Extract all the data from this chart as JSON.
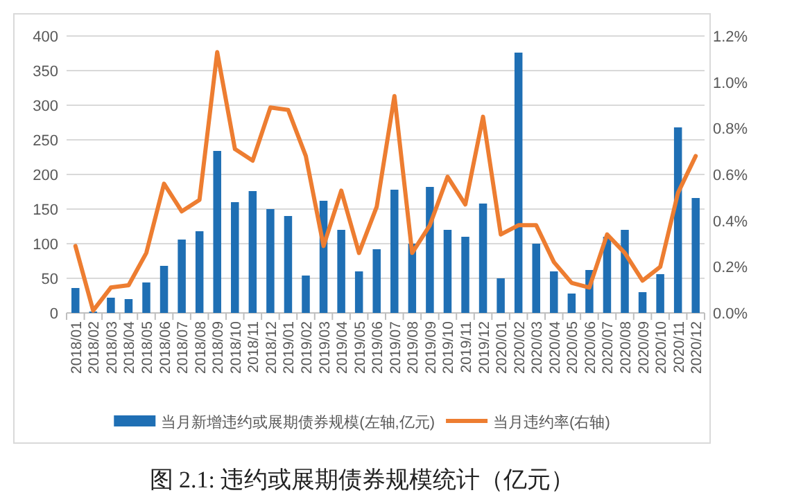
{
  "chart_data": {
    "type": "bar",
    "categories": [
      "2018/01",
      "2018/02",
      "2018/03",
      "2018/04",
      "2018/05",
      "2018/06",
      "2018/07",
      "2018/08",
      "2018/09",
      "2018/10",
      "2018/11",
      "2018/12",
      "2019/01",
      "2019/02",
      "2019/03",
      "2019/04",
      "2019/05",
      "2019/06",
      "2019/07",
      "2019/08",
      "2019/09",
      "2019/10",
      "2019/11",
      "2019/12",
      "2020/01",
      "2020/02",
      "2020/03",
      "2020/04",
      "2020/05",
      "2020/06",
      "2020/07",
      "2020/08",
      "2020/09",
      "2020/10",
      "2020/11",
      "2020/12"
    ],
    "series": [
      {
        "name": "当月新增违约或展期债券规模(左轴,亿元)",
        "color": "#1f6fb4",
        "values": [
          36,
          2,
          22,
          20,
          44,
          68,
          106,
          118,
          234,
          160,
          176,
          150,
          140,
          54,
          162,
          120,
          60,
          92,
          178,
          100,
          182,
          120,
          110,
          158,
          50,
          376,
          100,
          60,
          28,
          62,
          110,
          120,
          30,
          56,
          268,
          166
        ]
      },
      {
        "name": "当月违约率(右轴)",
        "type": "line",
        "axis": "y2",
        "color": "#ed7d31",
        "values": [
          0.29,
          0.01,
          0.11,
          0.12,
          0.26,
          0.56,
          0.44,
          0.49,
          1.13,
          0.71,
          0.66,
          0.89,
          0.88,
          0.68,
          0.29,
          0.53,
          0.26,
          0.46,
          0.94,
          0.26,
          0.38,
          0.59,
          0.47,
          0.85,
          0.34,
          0.38,
          0.38,
          0.22,
          0.13,
          0.11,
          0.34,
          0.26,
          0.14,
          0.2,
          0.52,
          0.68
        ]
      }
    ],
    "ylim": [
      0,
      400
    ],
    "yticks": [
      0,
      50,
      100,
      150,
      200,
      250,
      300,
      350,
      400
    ],
    "y2lim": [
      0,
      1.2
    ],
    "y2ticks": [
      {
        "value": 0,
        "label": "0.0%"
      },
      {
        "value": 0.2,
        "label": "0.2%"
      },
      {
        "value": 0.4,
        "label": "0.4%"
      },
      {
        "value": 0.6,
        "label": "0.6%"
      },
      {
        "value": 0.8,
        "label": "0.8%"
      },
      {
        "value": 1.0,
        "label": "1.0%"
      },
      {
        "value": 1.2,
        "label": "1.2%"
      }
    ],
    "grid": "y",
    "legend": "bottom",
    "annotations": [
      "图 2.1: 违约或展期债券规模统计（亿元）"
    ]
  }
}
